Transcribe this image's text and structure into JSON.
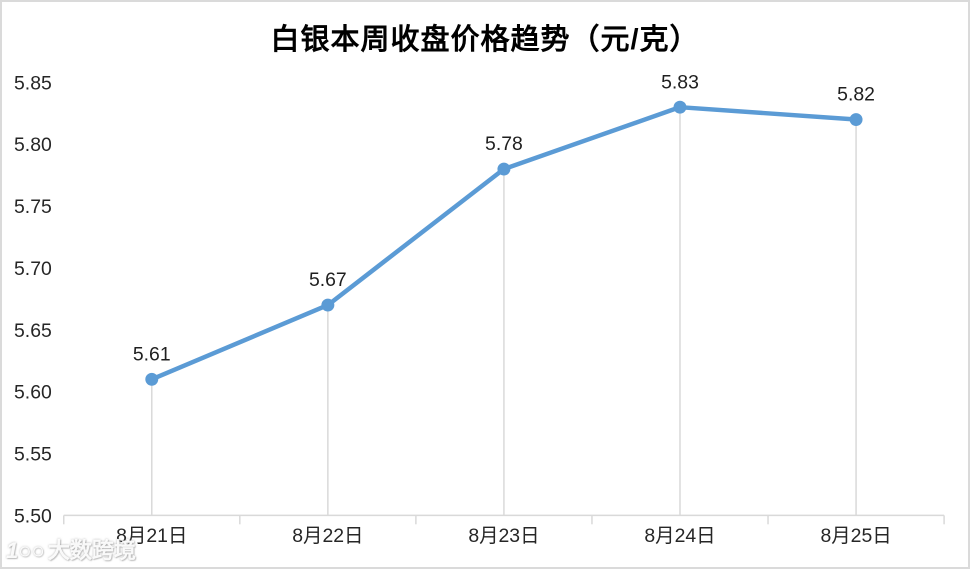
{
  "chart_data": {
    "type": "line",
    "title": "白银本周收盘价格趋势（元/克）",
    "categories": [
      "8月21日",
      "8月22日",
      "8月23日",
      "8月24日",
      "8月25日"
    ],
    "values": [
      5.61,
      5.67,
      5.78,
      5.83,
      5.82
    ],
    "data_labels": [
      "5.61",
      "5.67",
      "5.78",
      "5.83",
      "5.82"
    ],
    "ylim": [
      5.5,
      5.85
    ],
    "ytick_step": 0.05,
    "ytick_labels": [
      "5.50",
      "5.55",
      "5.60",
      "5.65",
      "5.70",
      "5.75",
      "5.80",
      "5.85"
    ],
    "xlabel": "",
    "ylabel": "",
    "legend": "none",
    "grid": "none",
    "drop_lines": true,
    "colors": {
      "line": "#5B9BD5",
      "marker": "#5B9BD5",
      "axis": "#D9D9D9",
      "tick_label": "#262626",
      "data_label": "#1f1f1f",
      "title": "#000000"
    }
  },
  "watermark": {
    "logo": "1○○",
    "text": "大数跨境"
  }
}
